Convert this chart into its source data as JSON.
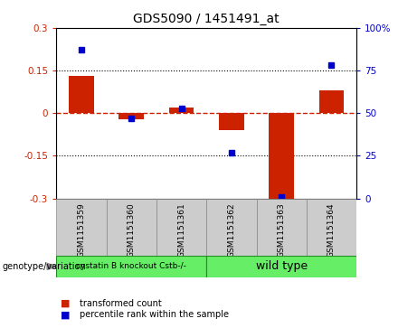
{
  "title": "GDS5090 / 1451491_at",
  "categories": [
    "GSM1151359",
    "GSM1151360",
    "GSM1151361",
    "GSM1151362",
    "GSM1151363",
    "GSM1151364"
  ],
  "red_values": [
    0.13,
    -0.02,
    0.02,
    -0.06,
    -0.3,
    0.08
  ],
  "blue_values": [
    87,
    47,
    53,
    27,
    1,
    78
  ],
  "ylim_left": [
    -0.3,
    0.3
  ],
  "ylim_right": [
    0,
    100
  ],
  "yticks_left": [
    -0.3,
    -0.15,
    0,
    0.15,
    0.3
  ],
  "yticks_right": [
    0,
    25,
    50,
    75,
    100
  ],
  "ytick_labels_right": [
    "0",
    "25",
    "50",
    "75",
    "100%"
  ],
  "hlines_dotted": [
    0.15,
    -0.15
  ],
  "group1_label": "cystatin B knockout Cstb-/-",
  "group2_label": "wild type",
  "group1_indices": [
    0,
    1,
    2
  ],
  "group2_indices": [
    3,
    4,
    5
  ],
  "group_color": "#66ee66",
  "bar_color": "#cc2200",
  "dot_color": "#0000cc",
  "legend_label_red": "transformed count",
  "legend_label_blue": "percentile rank within the sample",
  "genotype_label": "genotype/variation",
  "tick_color_left": "#cc2200",
  "tick_color_right": "#0000cc",
  "zero_line_color": "#cc2200",
  "label_box_color": "#cccccc",
  "label_box_edge": "#888888"
}
